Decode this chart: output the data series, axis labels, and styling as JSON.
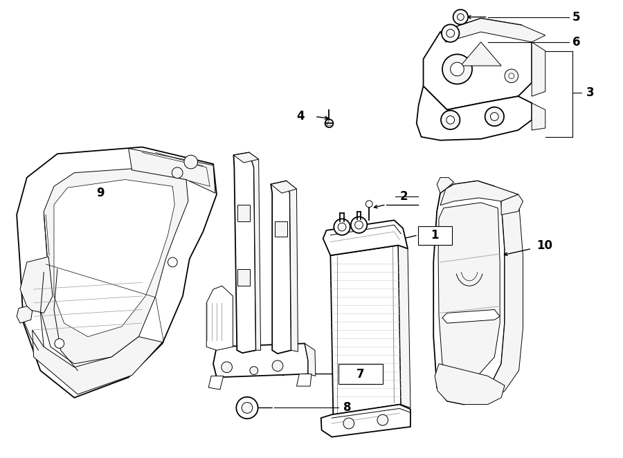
{
  "background_color": "#ffffff",
  "line_color": "#000000",
  "label_color": "#000000",
  "fig_width": 9.0,
  "fig_height": 6.62,
  "dpi": 100,
  "lw_main": 1.3,
  "lw_thin": 0.7,
  "lw_detail": 0.5,
  "gray_fill": "#e8e8e8",
  "light_fill": "#f5f5f5",
  "white_fill": "#ffffff"
}
